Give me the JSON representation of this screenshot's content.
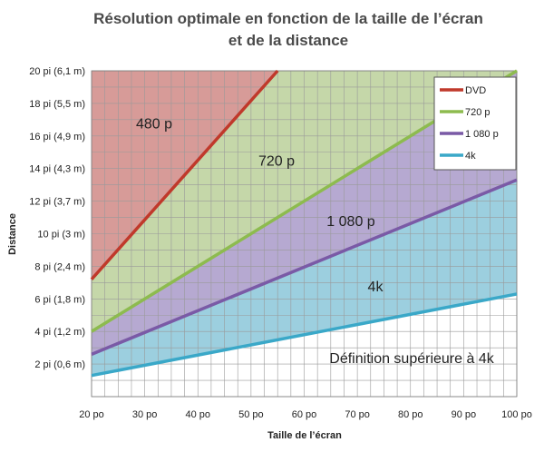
{
  "chart_data": {
    "type": "line",
    "title": [
      "Résolution optimale en fonction de la taille de l’écran",
      "et de la distance"
    ],
    "xlabel": "Taille de l’écran",
    "ylabel": "Distance",
    "xlim": [
      20,
      100
    ],
    "ylim": [
      0,
      20
    ],
    "x_ticks": [
      20,
      30,
      40,
      50,
      60,
      70,
      80,
      90,
      100
    ],
    "x_tick_labels": [
      "20 po",
      "30 po",
      "40 po",
      "50 po",
      "60 po",
      "70 po",
      "80 po",
      "90 po",
      "100 po"
    ],
    "y_ticks": [
      2,
      4,
      6,
      8,
      10,
      12,
      14,
      16,
      18,
      20
    ],
    "y_tick_labels": [
      "2 pi (0,6 m)",
      "4 pi (1,2 m)",
      "6 pi (1,8 m)",
      "8 pi (2,4 m)",
      "10 pi (3 m)",
      "12 pi (3,7 m)",
      "14 pi (4,3 m)",
      "16 pi (4,9 m)",
      "18 pi (5,5 m)",
      "20 pi (6,1 m)"
    ],
    "grid": true,
    "legend_position": "top-right",
    "series": [
      {
        "name": "DVD",
        "color": "#c0392b",
        "x": [
          20,
          55
        ],
        "y": [
          7.2,
          20
        ]
      },
      {
        "name": "720 p",
        "color": "#8dbb4f",
        "x": [
          20,
          100
        ],
        "y": [
          4.0,
          20
        ]
      },
      {
        "name": "1 080 p",
        "color": "#7a5aa6",
        "x": [
          20,
          100
        ],
        "y": [
          2.6,
          13.3
        ]
      },
      {
        "name": "4k",
        "color": "#3aa8c8",
        "x": [
          20,
          100
        ],
        "y": [
          1.3,
          6.3
        ]
      }
    ],
    "regions": [
      {
        "label": "480 p",
        "color": "#d79b98",
        "label_x": 29,
        "label_y": 16.8
      },
      {
        "label": "720 p",
        "color": "#c5d7a9",
        "label_x": 65,
        "label_y": 14.5
      },
      {
        "label": "1 080 p",
        "color": "#b6a9d1",
        "label_x": 82,
        "label_y": 10.8
      },
      {
        "label": "4k",
        "color": "#9ccfdf",
        "label_x": 90,
        "label_y": 6.8
      },
      {
        "label": "Définition supérieure à 4k",
        "color": "#ffffff",
        "label_x": 90,
        "label_y": 2.4
      }
    ]
  }
}
